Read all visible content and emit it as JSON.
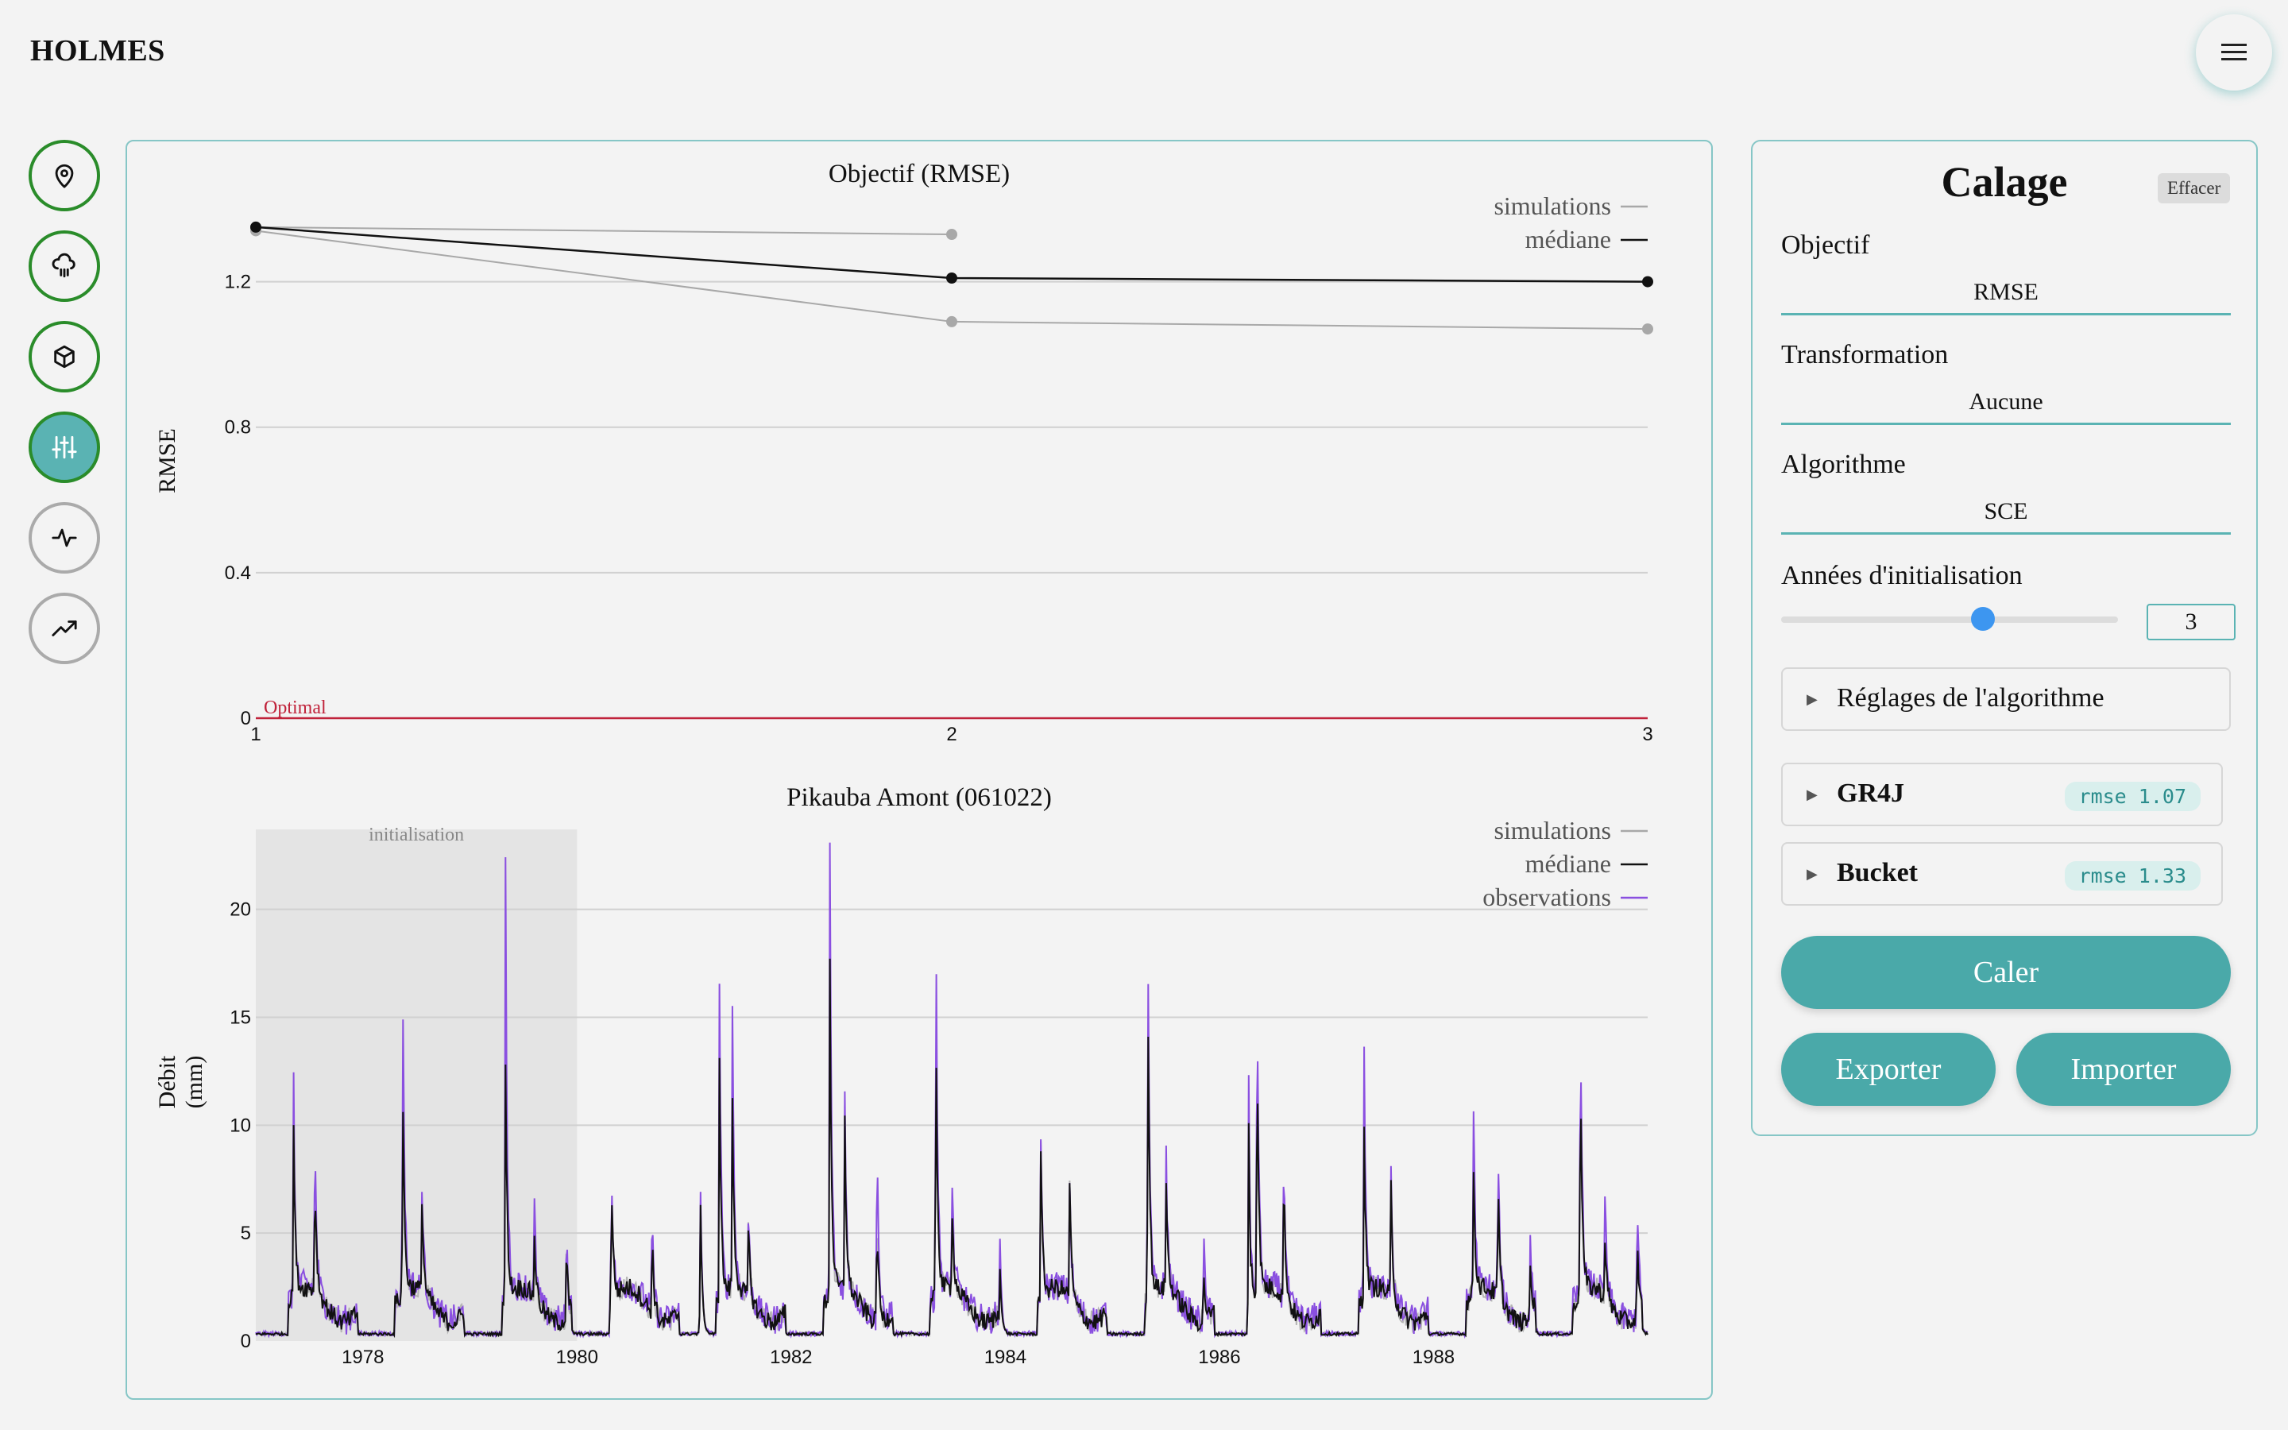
{
  "app": {
    "title": "HOLMES"
  },
  "nav": [
    {
      "name": "location",
      "icon": "map-pin-icon"
    },
    {
      "name": "weather",
      "icon": "cloud-rain-icon"
    },
    {
      "name": "model",
      "icon": "cube-icon"
    },
    {
      "name": "calibration",
      "icon": "sliders-icon"
    },
    {
      "name": "activity",
      "icon": "pulse-icon"
    },
    {
      "name": "projection",
      "icon": "trending-up-icon"
    }
  ],
  "panel": {
    "title": "Calage",
    "clear_label": "Effacer",
    "objective_label": "Objectif",
    "objective_value": "RMSE",
    "transform_label": "Transformation",
    "transform_value": "Aucune",
    "algorithm_label": "Algorithme",
    "algorithm_value": "SCE",
    "init_years_label": "Années d'initialisation",
    "init_years_value": "3",
    "init_years_fraction": 0.6,
    "algo_settings_label": "Réglages de l'algorithme",
    "models": [
      {
        "name": "GR4J",
        "badge": "rmse 1.07"
      },
      {
        "name": "Bucket",
        "badge": "rmse 1.33"
      }
    ],
    "calibrate_label": "Caler",
    "export_label": "Exporter",
    "import_label": "Importer"
  },
  "colors": {
    "accent": "#4aa9a9",
    "nav_ring": "#2a8c2a",
    "observations": "#8a4fe0",
    "optimal": "#c0223a"
  },
  "chart_data": [
    {
      "type": "line",
      "title": "Objectif (RMSE)",
      "xlabel": "",
      "ylabel": "RMSE",
      "x": [
        1,
        2,
        3
      ],
      "xlim": [
        1,
        3
      ],
      "ylim": [
        0,
        1.4
      ],
      "yticks": [
        0,
        0.4,
        0.8,
        1.2
      ],
      "xticks": [
        1,
        2,
        3
      ],
      "series": [
        {
          "name": "simulations",
          "x": [
            1,
            2
          ],
          "values": [
            1.35,
            1.33
          ],
          "role": "simulation"
        },
        {
          "name": "simulations",
          "x": [
            1,
            2,
            3
          ],
          "values": [
            1.34,
            1.09,
            1.07
          ],
          "role": "simulation"
        },
        {
          "name": "médiane",
          "x": [
            1,
            2,
            3
          ],
          "values": [
            1.35,
            1.21,
            1.2
          ],
          "role": "median"
        }
      ],
      "optimal": {
        "label": "Optimal",
        "value": 0
      },
      "legend": [
        "simulations",
        "médiane"
      ],
      "legend_position": "top-right",
      "grid": true
    },
    {
      "type": "line",
      "title": "Pikauba Amont (061022)",
      "ylabel": "Débit (mm)",
      "xlim": [
        1977.0,
        1990.0
      ],
      "ylim": [
        0,
        24
      ],
      "yticks": [
        0,
        5,
        10,
        15,
        20
      ],
      "xticks": [
        1978,
        1980,
        1982,
        1984,
        1986,
        1988
      ],
      "initialisation": {
        "label": "initialisation",
        "start": 1977.0,
        "end": 1980.0
      },
      "legend": [
        "simulations",
        "médiane",
        "observations"
      ],
      "legend_position": "top-right",
      "grid": true,
      "peaks": [
        [
          1977.35,
          11.6,
          9.5
        ],
        [
          1977.55,
          8.5,
          6.5
        ],
        [
          1978.37,
          18.0,
          11.7
        ],
        [
          1978.55,
          5.8,
          5.0
        ],
        [
          1979.33,
          23.0,
          12.6
        ],
        [
          1979.6,
          4.8,
          3.3
        ],
        [
          1979.9,
          4.0,
          3.5
        ],
        [
          1980.32,
          8.0,
          6.9
        ],
        [
          1980.7,
          5.0,
          4.2
        ],
        [
          1981.15,
          8.2,
          7.5
        ],
        [
          1981.33,
          15.0,
          11.5
        ],
        [
          1981.45,
          14.5,
          9.5
        ],
        [
          1981.6,
          4.0,
          3.5
        ],
        [
          1982.36,
          23.0,
          17.0
        ],
        [
          1982.5,
          9.2,
          8.4
        ],
        [
          1982.8,
          10.2,
          5.8
        ],
        [
          1983.35,
          21.0,
          15.0
        ],
        [
          1983.5,
          6.2,
          4.8
        ],
        [
          1983.95,
          4.5,
          3.2
        ],
        [
          1984.33,
          7.8,
          7.8
        ],
        [
          1984.6,
          6.0,
          5.8
        ],
        [
          1985.33,
          19.5,
          17.2
        ],
        [
          1985.5,
          7.5,
          5.8
        ],
        [
          1985.85,
          4.5,
          3.0
        ],
        [
          1986.27,
          15.0,
          12.2
        ],
        [
          1986.35,
          17.5,
          14.0
        ],
        [
          1986.6,
          8.0,
          6.5
        ],
        [
          1987.35,
          12.5,
          8.8
        ],
        [
          1987.6,
          7.2,
          6.0
        ],
        [
          1988.37,
          11.0,
          7.5
        ],
        [
          1988.6,
          8.5,
          6.5
        ],
        [
          1988.9,
          5.0,
          3.5
        ],
        [
          1989.37,
          16.2,
          12.7
        ],
        [
          1989.6,
          5.0,
          3.0
        ],
        [
          1989.9,
          7.2,
          4.5
        ]
      ],
      "baseflow_minimum": 0.3
    }
  ]
}
